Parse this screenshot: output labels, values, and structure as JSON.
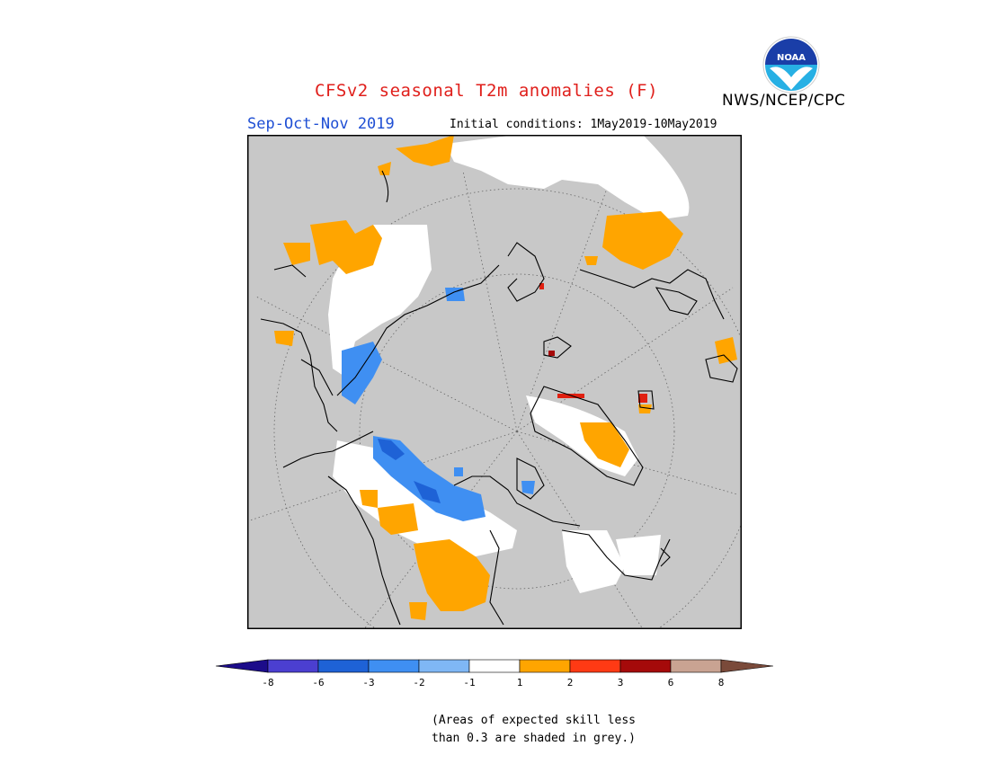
{
  "header": {
    "title": "CFSv2 seasonal T2m anomalies (F)",
    "season": "Sep-Oct-Nov 2019",
    "initial_conditions": "Initial conditions: 1May2019-10May2019",
    "agency": "NWS/NCEP/CPC",
    "logo_text": "NOAA"
  },
  "legend": {
    "ticks": [
      "-8",
      "-6",
      "-3",
      "-2",
      "-1",
      "1",
      "2",
      "3",
      "6",
      "8"
    ],
    "colors": [
      "#1c0c8a",
      "#4b3fd0",
      "#1e62d6",
      "#3f8ff2",
      "#7fb7f5",
      "#ffffff",
      "#ffa500",
      "#ff3a14",
      "#a50a0a",
      "#c9a392",
      "#7a4a3a"
    ],
    "skill_grey": "#c8c8c8"
  },
  "note": {
    "line1": "(Areas of expected skill less",
    "line2": "than 0.3 are shaded in grey.)"
  },
  "map": {
    "projection": "north polar stereographic",
    "variable": "T2m anomaly",
    "units": "F"
  }
}
